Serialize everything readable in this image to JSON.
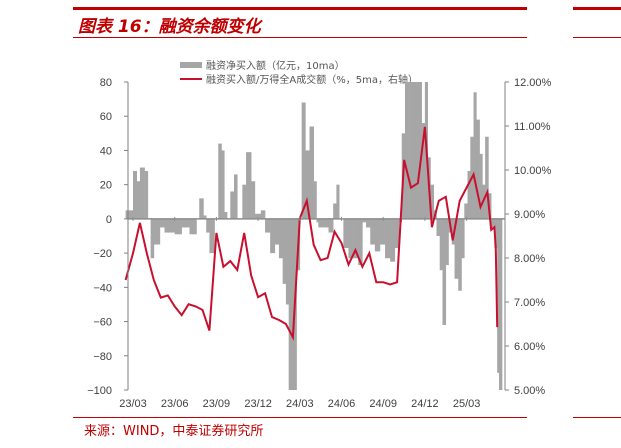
{
  "header": {
    "title": "图表 16：融资余额变化"
  },
  "footer": {
    "source": "来源：WIND，中泰证券研究所"
  },
  "colors": {
    "accent": "#c00000",
    "bars": "#a6a6a6",
    "line": "#c8102e"
  },
  "chart_data": {
    "type": "bar+line",
    "title": "",
    "left_axis": {
      "ylim": [
        -100,
        80
      ],
      "ticks": [
        "80",
        "60",
        "40",
        "20",
        "0",
        "−20",
        "−40",
        "−60",
        "−80",
        "−100"
      ]
    },
    "right_axis": {
      "ylim": [
        5,
        12
      ],
      "ticks": [
        "12.00%",
        "11.00%",
        "10.00%",
        "9.00%",
        "8.00%",
        "7.00%",
        "6.00%",
        "5.00%"
      ]
    },
    "x_ticks": [
      "23/03",
      "23/06",
      "23/09",
      "23/12",
      "24/03",
      "24/06",
      "24/09",
      "24/12",
      "25/03"
    ],
    "grid": false,
    "legend_position": "top",
    "series": [
      {
        "name": "融资净买入额（亿元，10ma）",
        "type": "bar",
        "axis": "left",
        "points": [
          [
            "2023-02-15",
            5
          ],
          [
            "2023-03-01",
            28
          ],
          [
            "2023-03-09",
            22
          ],
          [
            "2023-03-16",
            30
          ],
          [
            "2023-03-26",
            28
          ],
          [
            "2023-04-03",
            0
          ],
          [
            "2023-04-09",
            -23
          ],
          [
            "2023-04-16",
            -15
          ],
          [
            "2023-04-29",
            -5
          ],
          [
            "2023-05-09",
            -8
          ],
          [
            "2023-06-01",
            -9
          ],
          [
            "2023-06-16",
            -5
          ],
          [
            "2023-07-03",
            -9
          ],
          [
            "2023-07-18",
            0
          ],
          [
            "2023-07-24",
            12
          ],
          [
            "2023-08-03",
            2
          ],
          [
            "2023-08-09",
            -8
          ],
          [
            "2023-08-16",
            -20
          ],
          [
            "2023-08-27",
            0
          ],
          [
            "2023-09-05",
            44
          ],
          [
            "2023-09-12",
            40
          ],
          [
            "2023-09-18",
            4
          ],
          [
            "2023-09-24",
            0
          ],
          [
            "2023-10-01",
            16
          ],
          [
            "2023-10-09",
            26
          ],
          [
            "2023-10-16",
            0
          ],
          [
            "2023-10-27",
            20
          ],
          [
            "2023-11-05",
            39
          ],
          [
            "2023-11-16",
            22
          ],
          [
            "2023-11-24",
            3
          ],
          [
            "2023-12-07",
            5
          ],
          [
            "2023-12-16",
            -8
          ],
          [
            "2023-12-27",
            -20
          ],
          [
            "2024-01-07",
            -15
          ],
          [
            "2024-01-16",
            -23
          ],
          [
            "2024-01-24",
            -38
          ],
          [
            "2024-02-01",
            -50
          ],
          [
            "2024-02-07",
            -100
          ],
          [
            "2024-02-18",
            -100
          ],
          [
            "2024-02-24",
            -30
          ],
          [
            "2024-03-01",
            0
          ],
          [
            "2024-03-05",
            68
          ],
          [
            "2024-03-13",
            40
          ],
          [
            "2024-03-22",
            54
          ],
          [
            "2024-04-01",
            22
          ],
          [
            "2024-04-07",
            -2
          ],
          [
            "2024-04-11",
            -5
          ],
          [
            "2024-04-22",
            -5
          ],
          [
            "2024-05-03",
            -8
          ],
          [
            "2024-05-13",
            9
          ],
          [
            "2024-05-20",
            20
          ],
          [
            "2024-05-26",
            0
          ],
          [
            "2024-06-05",
            -17
          ],
          [
            "2024-06-16",
            -23
          ],
          [
            "2024-06-26",
            -23
          ],
          [
            "2024-07-07",
            -27
          ],
          [
            "2024-07-16",
            -2
          ],
          [
            "2024-07-24",
            -5
          ],
          [
            "2024-08-03",
            -15
          ],
          [
            "2024-08-13",
            -19
          ],
          [
            "2024-08-24",
            -15
          ],
          [
            "2024-09-05",
            -23
          ],
          [
            "2024-09-16",
            -25
          ],
          [
            "2024-09-26",
            -17
          ],
          [
            "2024-10-05",
            -2
          ],
          [
            "2024-10-11",
            50
          ],
          [
            "2024-10-18",
            80
          ],
          [
            "2024-10-28",
            80
          ],
          [
            "2024-11-08",
            80
          ],
          [
            "2024-11-16",
            80
          ],
          [
            "2024-11-24",
            56
          ],
          [
            "2024-12-01",
            80
          ],
          [
            "2024-12-07",
            36
          ],
          [
            "2024-12-13",
            20
          ],
          [
            "2024-12-20",
            5
          ],
          [
            "2024-12-26",
            -10
          ],
          [
            "2025-01-03",
            -30
          ],
          [
            "2025-01-09",
            -62
          ],
          [
            "2025-01-16",
            -27
          ],
          [
            "2025-01-22",
            -8
          ],
          [
            "2025-01-29",
            -15
          ],
          [
            "2025-02-05",
            -35
          ],
          [
            "2025-02-13",
            -42
          ],
          [
            "2025-02-20",
            -23
          ],
          [
            "2025-02-26",
            9
          ],
          [
            "2025-03-03",
            28
          ],
          [
            "2025-03-09",
            48
          ],
          [
            "2025-03-16",
            74
          ],
          [
            "2025-03-22",
            58
          ],
          [
            "2025-03-29",
            38
          ],
          [
            "2025-04-05",
            20
          ],
          [
            "2025-04-11",
            48
          ],
          [
            "2025-04-18",
            15
          ],
          [
            "2025-04-24",
            -5
          ],
          [
            "2025-05-01",
            -17
          ],
          [
            "2025-05-07",
            -90
          ],
          [
            "2025-05-11",
            -100
          ]
        ]
      },
      {
        "name": "融资买入额/万得全A成交额（%，5ma，右轴）",
        "type": "line",
        "axis": "right",
        "points": [
          [
            "2023-02-15",
            7.5
          ],
          [
            "2023-03-01",
            8.11
          ],
          [
            "2023-03-16",
            8.8
          ],
          [
            "2023-04-01",
            8.1
          ],
          [
            "2023-04-16",
            7.5
          ],
          [
            "2023-05-01",
            7.1
          ],
          [
            "2023-05-16",
            7.15
          ],
          [
            "2023-06-01",
            6.9
          ],
          [
            "2023-06-16",
            6.7
          ],
          [
            "2023-07-01",
            6.95
          ],
          [
            "2023-07-16",
            6.9
          ],
          [
            "2023-08-01",
            6.82
          ],
          [
            "2023-08-16",
            6.35
          ],
          [
            "2023-09-01",
            8.57
          ],
          [
            "2023-09-16",
            7.8
          ],
          [
            "2023-10-01",
            7.93
          ],
          [
            "2023-10-16",
            7.73
          ],
          [
            "2023-11-01",
            8.57
          ],
          [
            "2023-11-16",
            7.6
          ],
          [
            "2023-12-01",
            7.11
          ],
          [
            "2023-12-16",
            7.2
          ],
          [
            "2024-01-01",
            6.66
          ],
          [
            "2024-01-16",
            6.59
          ],
          [
            "2024-02-01",
            6.5
          ],
          [
            "2024-02-16",
            6.2
          ],
          [
            "2024-03-01",
            8.9
          ],
          [
            "2024-03-16",
            9.3
          ],
          [
            "2024-04-01",
            8.3
          ],
          [
            "2024-04-16",
            7.95
          ],
          [
            "2024-05-01",
            8.0
          ],
          [
            "2024-05-16",
            8.6
          ],
          [
            "2024-06-01",
            8.34
          ],
          [
            "2024-06-16",
            7.85
          ],
          [
            "2024-07-01",
            8.18
          ],
          [
            "2024-07-16",
            7.8
          ],
          [
            "2024-08-01",
            8.11
          ],
          [
            "2024-08-16",
            7.45
          ],
          [
            "2024-09-01",
            7.45
          ],
          [
            "2024-09-16",
            7.4
          ],
          [
            "2024-10-01",
            7.45
          ],
          [
            "2024-10-16",
            10.23
          ],
          [
            "2024-11-01",
            9.6
          ],
          [
            "2024-11-16",
            9.7
          ],
          [
            "2024-12-01",
            10.98
          ],
          [
            "2024-12-16",
            8.7
          ],
          [
            "2025-01-01",
            9.3
          ],
          [
            "2025-01-16",
            9.39
          ],
          [
            "2025-02-01",
            8.4
          ],
          [
            "2025-02-16",
            9.3
          ],
          [
            "2025-03-01",
            9.6
          ],
          [
            "2025-03-16",
            9.9
          ],
          [
            "2025-04-01",
            9.16
          ],
          [
            "2025-04-16",
            9.5
          ],
          [
            "2025-04-24",
            8.64
          ],
          [
            "2025-05-01",
            8.7
          ],
          [
            "2025-05-04",
            8.2
          ],
          [
            "2025-05-07",
            6.43
          ]
        ]
      }
    ]
  }
}
